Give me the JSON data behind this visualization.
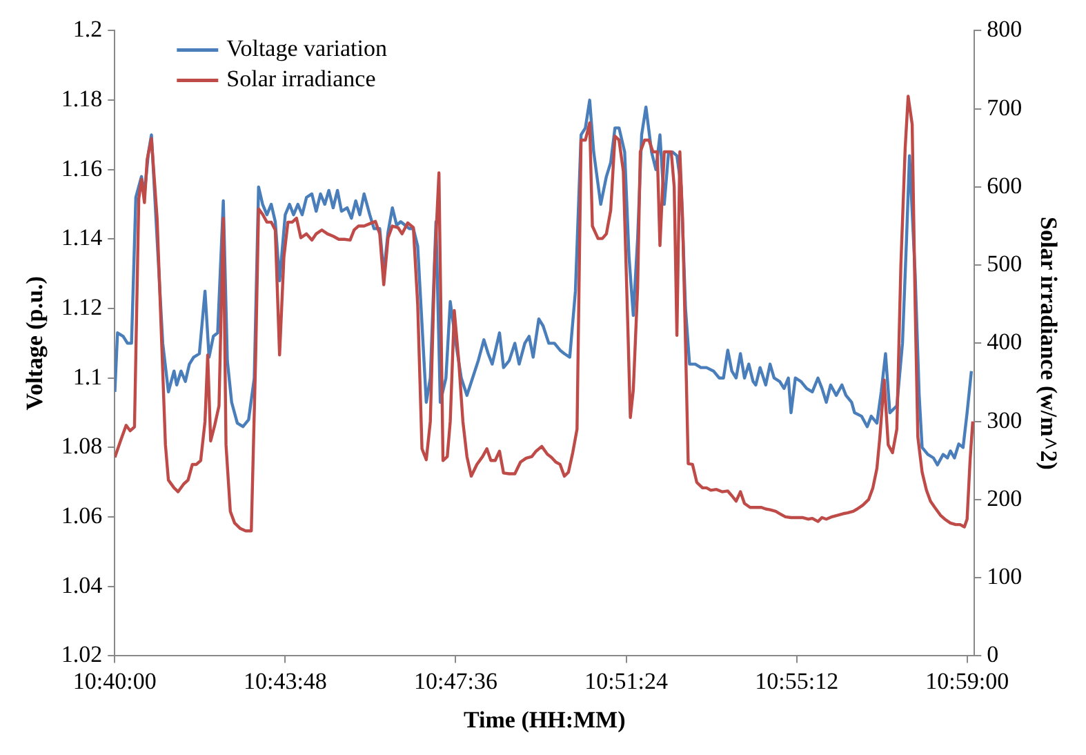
{
  "chart_data": {
    "type": "line",
    "xlabel": "Time (HH:MM)",
    "ylabel": "Voltage (p.u.)",
    "y2label": "Solar irradiance (w/m^2)",
    "xlim": [
      10.666667,
      10.986
    ],
    "xticks": [
      {
        "value": 10.666667,
        "label": "10:40:00"
      },
      {
        "value": 10.73,
        "label": "10:43:48"
      },
      {
        "value": 10.793333,
        "label": "10:47:36"
      },
      {
        "value": 10.856667,
        "label": "10:51:24"
      },
      {
        "value": 10.92,
        "label": "10:55:12"
      },
      {
        "value": 10.983333,
        "label": "10:59:00"
      }
    ],
    "ylim": [
      1.02,
      1.2
    ],
    "yticks": [
      1.02,
      1.04,
      1.06,
      1.08,
      1.1,
      1.12,
      1.14,
      1.16,
      1.18,
      1.2
    ],
    "y2lim": [
      0,
      800
    ],
    "y2ticks": [
      0,
      100,
      200,
      300,
      400,
      500,
      600,
      700,
      800
    ],
    "grid": false,
    "legend": "top left",
    "marker": "none",
    "line_style": "solid",
    "series": [
      {
        "name": "Voltage variation",
        "color": "#4a7ebb",
        "x": [
          10.6667,
          10.6677,
          10.6698,
          10.6714,
          10.6729,
          10.6745,
          10.6766,
          10.6777,
          10.6792,
          10.6803,
          10.6824,
          10.6845,
          10.6866,
          10.6887,
          10.6897,
          10.6913,
          10.6929,
          10.6944,
          10.696,
          10.6981,
          10.7002,
          10.7017,
          10.7033,
          10.7049,
          10.707,
          10.7085,
          10.7101,
          10.7122,
          10.7143,
          10.7164,
          10.7185,
          10.7201,
          10.7216,
          10.7232,
          10.7248,
          10.7263,
          10.7279,
          10.73,
          10.7316,
          10.7331,
          10.7347,
          10.7363,
          10.7379,
          10.7399,
          10.7415,
          10.7431,
          10.7447,
          10.7462,
          10.7478,
          10.7494,
          10.7509,
          10.753,
          10.7546,
          10.7562,
          10.7577,
          10.7593,
          10.7614,
          10.763,
          10.7651,
          10.7666,
          10.7682,
          10.7698,
          10.7714,
          10.7729,
          10.7745,
          10.7761,
          10.7776,
          10.7792,
          10.7824,
          10.7839,
          10.786,
          10.7876,
          10.7897,
          10.7913,
          10.7934,
          10.7954,
          10.7975,
          10.7996,
          10.8017,
          10.8038,
          10.8054,
          10.8069,
          10.8096,
          10.8111,
          10.8132,
          10.8153,
          10.8169,
          10.819,
          10.8206,
          10.8221,
          10.8242,
          10.8258,
          10.8279,
          10.83,
          10.8321,
          10.8337,
          10.8357,
          10.8378,
          10.8399,
          10.8415,
          10.8431,
          10.8446,
          10.8472,
          10.8493,
          10.8509,
          10.8525,
          10.854,
          10.8561,
          10.8577,
          10.8593,
          10.8609,
          10.8624,
          10.864,
          10.8661,
          10.8677,
          10.8692,
          10.8708,
          10.8724,
          10.874,
          10.8755,
          10.8771,
          10.8787,
          10.8802,
          10.8823,
          10.8844,
          10.8865,
          10.8891,
          10.8912,
          10.8928,
          10.8944,
          10.8959,
          10.8975,
          10.8991,
          10.9006,
          10.9022,
          10.9038,
          10.9048,
          10.9064,
          10.9085,
          10.9101,
          10.9116,
          10.9137,
          10.9153,
          10.9169,
          10.9179,
          10.9195,
          10.9216,
          10.9237,
          10.9258,
          10.9279,
          10.9294,
          10.931,
          10.9326,
          10.9347,
          10.9368,
          10.9383,
          10.9404,
          10.9415,
          10.9441,
          10.9462,
          10.9477,
          10.9498,
          10.9514,
          10.953,
          10.9546,
          10.9572,
          10.9593,
          10.9608,
          10.9619,
          10.964,
          10.9655,
          10.9666,
          10.9687,
          10.9708,
          10.9723,
          10.9744,
          10.976,
          10.9771,
          10.9786,
          10.9802,
          10.9818,
          10.9833,
          10.9849
        ],
        "values": [
          1.096,
          1.113,
          1.112,
          1.11,
          1.11,
          1.152,
          1.158,
          1.153,
          1.165,
          1.17,
          1.14,
          1.11,
          1.096,
          1.102,
          1.098,
          1.102,
          1.099,
          1.104,
          1.106,
          1.107,
          1.125,
          1.106,
          1.112,
          1.113,
          1.151,
          1.105,
          1.093,
          1.087,
          1.086,
          1.088,
          1.1,
          1.155,
          1.15,
          1.147,
          1.15,
          1.145,
          1.128,
          1.147,
          1.15,
          1.147,
          1.15,
          1.147,
          1.152,
          1.153,
          1.148,
          1.153,
          1.15,
          1.154,
          1.149,
          1.154,
          1.148,
          1.149,
          1.146,
          1.151,
          1.147,
          1.153,
          1.147,
          1.143,
          1.143,
          1.13,
          1.142,
          1.149,
          1.144,
          1.145,
          1.144,
          1.143,
          1.143,
          1.138,
          1.093,
          1.1,
          1.145,
          1.093,
          1.1,
          1.122,
          1.11,
          1.1,
          1.095,
          1.1,
          1.105,
          1.111,
          1.107,
          1.104,
          1.113,
          1.103,
          1.105,
          1.11,
          1.104,
          1.11,
          1.112,
          1.106,
          1.117,
          1.115,
          1.11,
          1.11,
          1.108,
          1.107,
          1.106,
          1.125,
          1.17,
          1.172,
          1.18,
          1.165,
          1.15,
          1.158,
          1.162,
          1.172,
          1.172,
          1.165,
          1.135,
          1.118,
          1.14,
          1.17,
          1.178,
          1.165,
          1.16,
          1.17,
          1.15,
          1.165,
          1.165,
          1.164,
          1.155,
          1.12,
          1.104,
          1.104,
          1.103,
          1.103,
          1.102,
          1.1,
          1.1,
          1.108,
          1.102,
          1.1,
          1.107,
          1.1,
          1.104,
          1.099,
          1.098,
          1.103,
          1.098,
          1.104,
          1.1,
          1.099,
          1.097,
          1.1,
          1.09,
          1.1,
          1.099,
          1.097,
          1.096,
          1.1,
          1.097,
          1.093,
          1.098,
          1.095,
          1.098,
          1.095,
          1.093,
          1.09,
          1.089,
          1.086,
          1.089,
          1.087,
          1.096,
          1.107,
          1.09,
          1.092,
          1.11,
          1.14,
          1.164,
          1.13,
          1.095,
          1.08,
          1.078,
          1.077,
          1.075,
          1.078,
          1.077,
          1.079,
          1.077,
          1.081,
          1.08,
          1.09,
          1.102
        ]
      },
      {
        "name": "Solar irradiance",
        "color": "#be4b48",
        "axis": "y2",
        "x": [
          10.6667,
          10.6688,
          10.6709,
          10.6724,
          10.674,
          10.6756,
          10.6766,
          10.6777,
          10.6787,
          10.6803,
          10.6824,
          10.6839,
          10.6855,
          10.6866,
          10.6887,
          10.6902,
          10.6923,
          10.6939,
          10.6955,
          10.697,
          10.6986,
          10.7002,
          10.7012,
          10.7023,
          10.7038,
          10.7054,
          10.707,
          10.708,
          10.7096,
          10.7112,
          10.7133,
          10.7153,
          10.7174,
          10.719,
          10.7201,
          10.7216,
          10.7232,
          10.7248,
          10.7263,
          10.7279,
          10.7295,
          10.731,
          10.7326,
          10.7342,
          10.7358,
          10.7379,
          10.7399,
          10.7415,
          10.7436,
          10.7457,
          10.7478,
          10.7499,
          10.752,
          10.7541,
          10.7556,
          10.7572,
          10.7593,
          10.7614,
          10.7635,
          10.7651,
          10.7666,
          10.7682,
          10.7698,
          10.7719,
          10.7734,
          10.7755,
          10.7776,
          10.7792,
          10.7808,
          10.7824,
          10.7839,
          10.7855,
          10.7871,
          10.7886,
          10.7902,
          10.7913,
          10.7928,
          10.7944,
          10.796,
          10.7975,
          10.7991,
          10.8012,
          10.8033,
          10.8049,
          10.8064,
          10.808,
          10.8096,
          10.8111,
          10.8132,
          10.8153,
          10.8174,
          10.8195,
          10.8216,
          10.8232,
          10.8253,
          10.8274,
          10.8289,
          10.8305,
          10.8321,
          10.8337,
          10.8352,
          10.8368,
          10.8384,
          10.8399,
          10.8415,
          10.8431,
          10.8441,
          10.8462,
          10.8478,
          10.8493,
          10.8509,
          10.8525,
          10.854,
          10.8556,
          10.8572,
          10.8582,
          10.8593,
          10.8609,
          10.8619,
          10.8635,
          10.8651,
          10.8666,
          10.8682,
          10.8692,
          10.8708,
          10.8734,
          10.8745,
          10.8755,
          10.8766,
          10.8776,
          10.8787,
          10.8797,
          10.8813,
          10.8829,
          10.885,
          10.8865,
          10.8881,
          10.8902,
          10.8923,
          10.8944,
          10.8959,
          10.8975,
          10.8991,
          10.9006,
          10.9027,
          10.9048,
          10.9069,
          10.9085,
          10.9101,
          10.9122,
          10.9137,
          10.9158,
          10.9179,
          10.92,
          10.9221,
          10.9242,
          10.9258,
          10.9279,
          10.9294,
          10.931,
          10.9331,
          10.9352,
          10.9373,
          10.9389,
          10.941,
          10.9425,
          10.9446,
          10.9467,
          10.9483,
          10.9498,
          10.9509,
          10.9525,
          10.954,
          10.9556,
          10.9572,
          10.9587,
          10.9603,
          10.9614,
          10.9629,
          10.964,
          10.965,
          10.9666,
          10.9682,
          10.9697,
          10.9713,
          10.9734,
          10.975,
          10.9771,
          10.9791,
          10.9807,
          10.9823,
          10.9833,
          10.9844,
          10.9854
        ],
        "values": [
          254,
          275,
          295,
          288,
          293,
          585,
          610,
          580,
          635,
          662,
          560,
          420,
          270,
          225,
          215,
          210,
          220,
          225,
          245,
          245,
          250,
          300,
          385,
          275,
          295,
          320,
          560,
          270,
          185,
          170,
          163,
          160,
          160,
          380,
          572,
          565,
          555,
          555,
          545,
          385,
          510,
          555,
          555,
          560,
          535,
          540,
          532,
          540,
          545,
          540,
          537,
          533,
          533,
          532,
          545,
          550,
          550,
          553,
          556,
          540,
          475,
          535,
          550,
          548,
          540,
          554,
          548,
          450,
          265,
          251,
          300,
          500,
          618,
          250,
          255,
          300,
          442,
          380,
          300,
          255,
          230,
          245,
          255,
          265,
          250,
          250,
          262,
          234,
          233,
          233,
          248,
          253,
          255,
          262,
          268,
          258,
          254,
          248,
          245,
          230,
          235,
          260,
          290,
          660,
          660,
          682,
          550,
          534,
          534,
          540,
          570,
          665,
          660,
          620,
          430,
          305,
          340,
          470,
          645,
          660,
          660,
          645,
          645,
          525,
          645,
          645,
          600,
          410,
          645,
          560,
          400,
          246,
          245,
          222,
          215,
          215,
          212,
          213,
          210,
          211,
          205,
          198,
          210,
          195,
          190,
          190,
          190,
          188,
          187,
          185,
          182,
          178,
          177,
          177,
          177,
          175,
          176,
          172,
          177,
          175,
          178,
          180,
          182,
          183,
          185,
          188,
          193,
          200,
          215,
          240,
          280,
          353,
          270,
          260,
          290,
          500,
          650,
          716,
          680,
          450,
          280,
          235,
          212,
          198,
          190,
          180,
          175,
          170,
          168,
          168,
          165,
          175,
          250,
          300
        ]
      }
    ]
  }
}
